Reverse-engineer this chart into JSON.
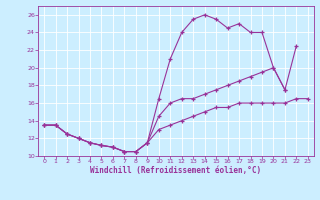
{
  "xlabel": "Windchill (Refroidissement éolien,°C)",
  "line_color": "#993399",
  "bg_color": "#cceeff",
  "grid_color": "#ffffff",
  "xlim_min": -0.5,
  "xlim_max": 23.5,
  "ylim_min": 10,
  "ylim_max": 27,
  "xticks": [
    0,
    1,
    2,
    3,
    4,
    5,
    6,
    7,
    8,
    9,
    10,
    11,
    12,
    13,
    14,
    15,
    16,
    17,
    18,
    19,
    20,
    21,
    22,
    23
  ],
  "yticks": [
    10,
    12,
    14,
    16,
    18,
    20,
    22,
    24,
    26
  ],
  "series": [
    {
      "x": [
        0,
        1,
        2,
        3,
        4,
        5,
        6,
        7,
        8,
        9,
        10,
        11,
        12,
        13,
        14,
        15,
        16,
        17,
        18,
        19,
        20,
        21
      ],
      "y": [
        13.5,
        13.5,
        12.5,
        12.0,
        11.5,
        11.2,
        11.0,
        10.5,
        10.5,
        11.5,
        16.5,
        21.0,
        24.0,
        25.5,
        26.0,
        25.5,
        24.5,
        25.0,
        24.0,
        24.0,
        20.0,
        17.5
      ]
    },
    {
      "x": [
        0,
        1,
        2,
        3,
        4,
        5,
        6,
        7,
        8,
        9,
        10,
        11,
        12,
        13,
        14,
        15,
        16,
        17,
        18,
        19,
        20,
        21,
        22
      ],
      "y": [
        13.5,
        13.5,
        12.5,
        12.0,
        11.5,
        11.2,
        11.0,
        10.5,
        10.5,
        11.5,
        14.5,
        16.0,
        16.5,
        16.5,
        17.0,
        17.5,
        18.0,
        18.5,
        19.0,
        19.5,
        20.0,
        17.5,
        22.5
      ]
    },
    {
      "x": [
        0,
        1,
        2,
        3,
        4,
        5,
        6,
        7,
        8,
        9,
        10,
        11,
        12,
        13,
        14,
        15,
        16,
        17,
        18,
        19,
        20,
        21,
        22,
        23
      ],
      "y": [
        13.5,
        13.5,
        12.5,
        12.0,
        11.5,
        11.2,
        11.0,
        10.5,
        10.5,
        11.5,
        13.0,
        13.5,
        14.0,
        14.5,
        15.0,
        15.5,
        15.5,
        16.0,
        16.0,
        16.0,
        16.0,
        16.0,
        16.5,
        16.5
      ]
    }
  ]
}
